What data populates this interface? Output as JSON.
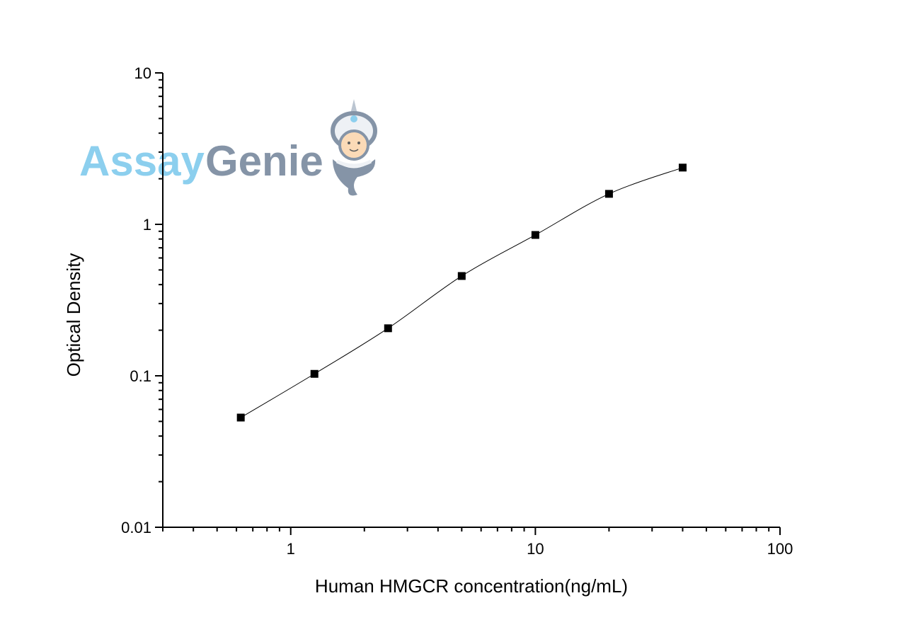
{
  "chart_data": {
    "type": "scatter",
    "title": "",
    "xlabel": "Human HMGCR concentration(ng/mL)",
    "ylabel": "Optical Density",
    "x_scale": "log",
    "y_scale": "log",
    "xlim": [
      0.3,
      100
    ],
    "ylim": [
      0.01,
      10
    ],
    "x_ticks": [
      {
        "value": 1,
        "label": "1"
      },
      {
        "value": 10,
        "label": "10"
      },
      {
        "value": 100,
        "label": "100"
      }
    ],
    "y_ticks": [
      {
        "value": 0.01,
        "label": "0.01"
      },
      {
        "value": 0.1,
        "label": "0.1"
      },
      {
        "value": 1,
        "label": "1"
      },
      {
        "value": 10,
        "label": "10"
      }
    ],
    "grid": false,
    "series": [
      {
        "x": [
          0.625,
          1.25,
          2.5,
          5,
          10,
          20,
          40
        ],
        "y": [
          0.053,
          0.103,
          0.206,
          0.456,
          0.851,
          1.59,
          2.37
        ],
        "marker": "square",
        "color": "#000000",
        "fit_curve": true
      }
    ]
  },
  "watermark": {
    "text_part1": "Assay",
    "text_part2": "Genie",
    "color1": "#86cdee",
    "color2": "#7f8fa3"
  }
}
